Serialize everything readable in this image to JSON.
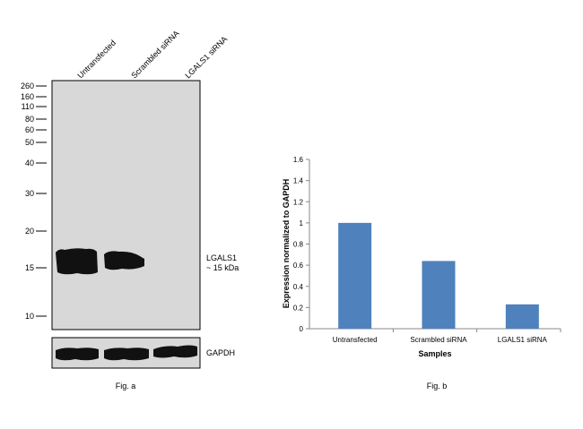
{
  "figure_a": {
    "caption": "Fig. a",
    "lanes": [
      "Untransfected",
      "Scrambled siRNA",
      "LGALS1 siRNA"
    ],
    "markers": [
      "260",
      "160",
      "110",
      "80",
      "60",
      "50",
      "40",
      "30",
      "20",
      "15",
      "10"
    ],
    "band_label_line1": "LGALS1",
    "band_label_line2": "~ 15 kDa",
    "loading_control_label": "GAPDH",
    "blot_background_color": "#d8d8d8",
    "band_color": "#111111"
  },
  "figure_b": {
    "caption": "Fig. b",
    "chart_data": {
      "type": "bar",
      "categories": [
        "Untransfected",
        "Scrambled siRNA",
        "LGALS1 siRNA"
      ],
      "values": [
        1.0,
        0.64,
        0.23
      ],
      "xlabel": "Samples",
      "ylabel": "Expression normalized to GAPDH",
      "ylim": [
        0,
        1.6
      ],
      "yticks": [
        "0",
        "0.2",
        "0.4",
        "0.6",
        "0.8",
        "1",
        "1.2",
        "1.4",
        "1.6"
      ],
      "bar_color": "#4f81bd",
      "grid": false,
      "legend": "none"
    }
  }
}
